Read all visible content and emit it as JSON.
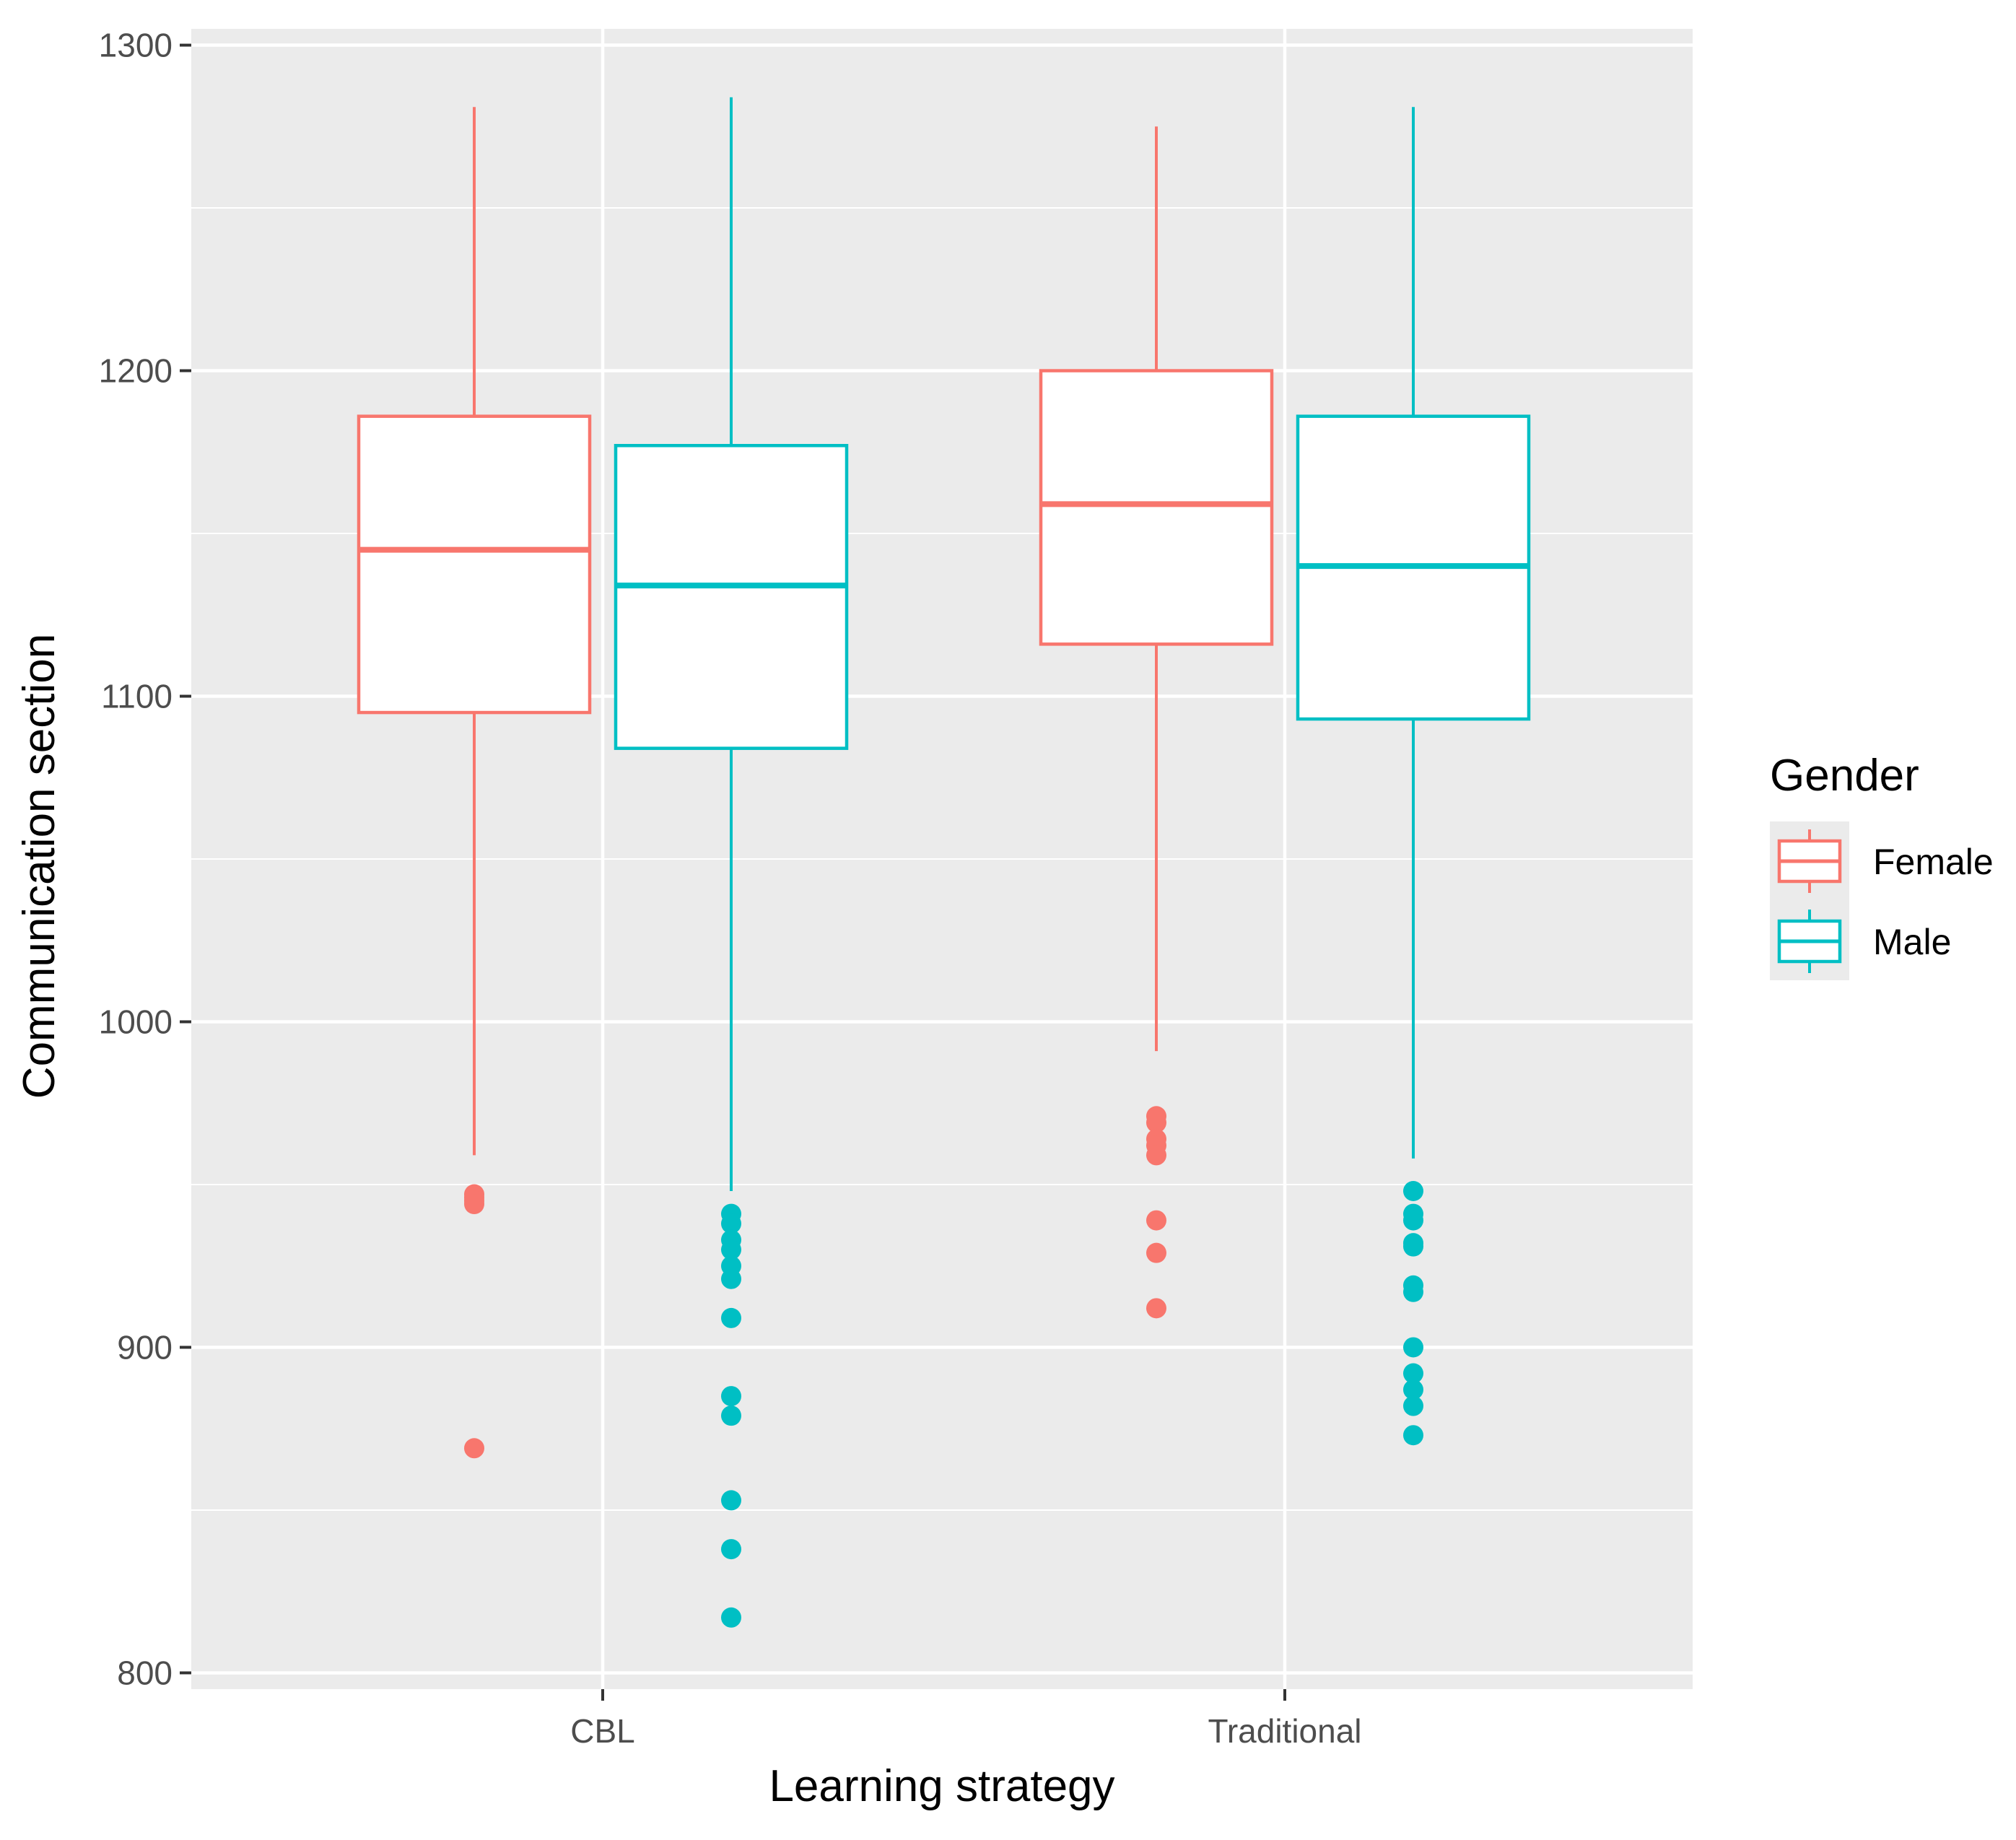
{
  "chart_data": {
    "type": "boxplot",
    "title": "",
    "xlabel": "Learning strategy",
    "ylabel": "Communication section",
    "ylim": [
      795,
      1305
    ],
    "y_ticks": [
      800,
      900,
      1000,
      1100,
      1200,
      1300
    ],
    "y_tick_labels": [
      "800",
      "900",
      "1000",
      "1100",
      "1200",
      "1300"
    ],
    "grid": true,
    "categories": [
      "CBL",
      "Traditional"
    ],
    "legend": {
      "title": "Gender",
      "position": "right",
      "entries": [
        "Female",
        "Male"
      ]
    },
    "series": [
      {
        "name": "Female",
        "color": "#F8766D",
        "boxes": [
          {
            "category": "CBL",
            "whisker_low": 959,
            "q1": 1095,
            "median": 1145,
            "q3": 1186,
            "whisker_high": 1281,
            "outliers": [
              947,
              946,
              945,
              944,
              869
            ]
          },
          {
            "category": "Traditional",
            "whisker_low": 991,
            "q1": 1116,
            "median": 1159,
            "q3": 1200,
            "whisker_high": 1275,
            "outliers": [
              971,
              969,
              964,
              962,
              959,
              939,
              929,
              912
            ]
          }
        ]
      },
      {
        "name": "Male",
        "color": "#00BFC4",
        "boxes": [
          {
            "category": "CBL",
            "whisker_low": 948,
            "q1": 1084,
            "median": 1134,
            "q3": 1177,
            "whisker_high": 1284,
            "outliers": [
              941,
              938,
              933,
              930,
              925,
              921,
              909,
              885,
              879,
              853,
              838,
              817
            ]
          },
          {
            "category": "Traditional",
            "whisker_low": 958,
            "q1": 1093,
            "median": 1140,
            "q3": 1186,
            "whisker_high": 1281,
            "outliers": [
              948,
              941,
              939,
              932,
              931,
              919,
              917,
              900,
              892,
              887,
              882,
              873
            ]
          }
        ]
      }
    ]
  }
}
